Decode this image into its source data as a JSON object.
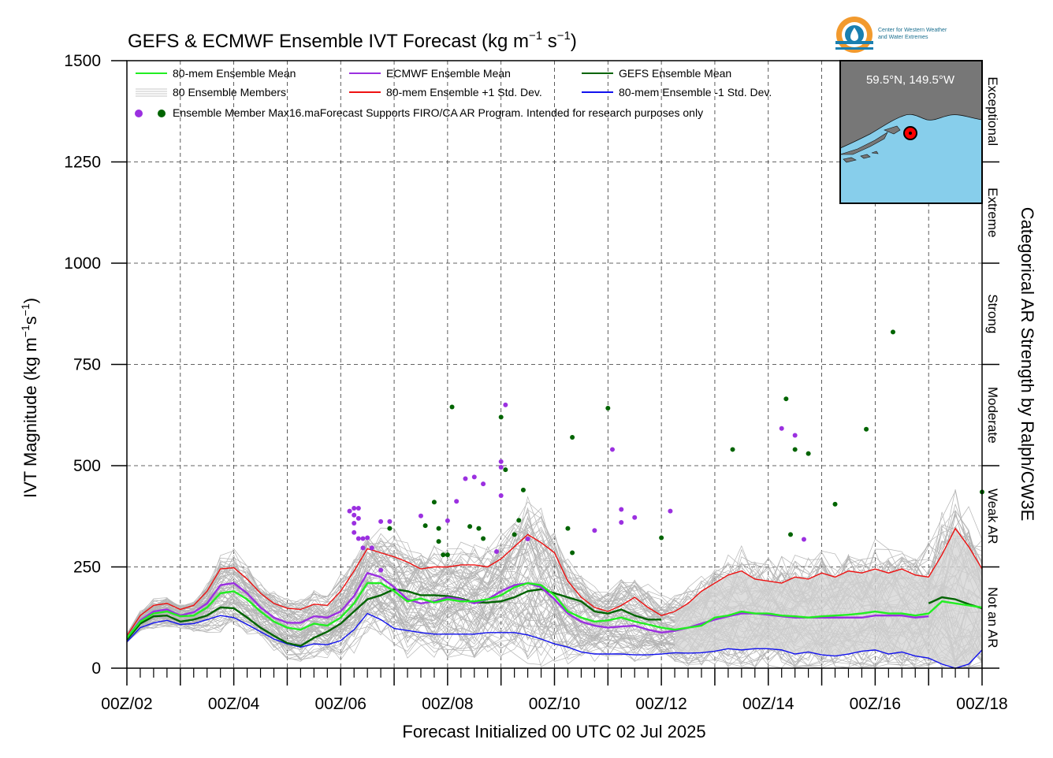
{
  "chart_data": {
    "type": "line",
    "title": "GEFS & ECMWF Ensemble IVT Forecast (kg m⁻¹ s⁻¹)",
    "title_main": "GEFS & ECMWF Ensemble IVT Forecast (kg m",
    "title_sup1": "−1",
    "title_mid": " s",
    "title_sup2": "−1",
    "title_end": ")",
    "ylabel": "IVT Magnitude (kg m⁻¹s⁻¹)",
    "ylabel_main": "IVT Magnitude (kg m",
    "ylabel_sup1": "−1",
    "ylabel_mid": "s",
    "ylabel_sup2": "−1",
    "ylabel_end": ")",
    "xlabel": "Forecast Initialized 00 UTC 02 Jul 2025",
    "right_label": "Categorical AR Strength by Ralph/CW3E",
    "ylim": [
      0,
      1500
    ],
    "xlim": [
      0,
      384
    ],
    "x_unit": "forecast hours",
    "grid": true,
    "yticks": [
      0,
      250,
      500,
      750,
      1000,
      1250,
      1500
    ],
    "ytick_labels": [
      "0",
      "250",
      "500",
      "750",
      "1000",
      "1250",
      "1500"
    ],
    "xtick_labels": [
      "00Z/02",
      "00Z/04",
      "00Z/06",
      "00Z/08",
      "00Z/10",
      "00Z/12",
      "00Z/14",
      "00Z/16",
      "00Z/18"
    ],
    "categories": [
      {
        "label": "Not an AR",
        "range": [
          0,
          250
        ]
      },
      {
        "label": "Weak AR",
        "range": [
          250,
          500
        ]
      },
      {
        "label": "Moderate",
        "range": [
          500,
          750
        ]
      },
      {
        "label": "Strong",
        "range": [
          750,
          1000
        ]
      },
      {
        "label": "Extreme",
        "range": [
          1000,
          1250
        ]
      },
      {
        "label": "Exceptional",
        "range": [
          1250,
          1500
        ]
      }
    ],
    "legend": {
      "placement": "top-left",
      "mean80": "80-mem Ensemble Mean",
      "ecmwf_mean": "ECMWF Ensemble Mean",
      "gefs_mean": "GEFS Ensemble Mean",
      "members": "80 Ensemble Members",
      "plus1": "80-mem Ensemble +1 Std. Dev.",
      "minus1": "80-mem Ensemble -1 Std. Dev.",
      "max": "Ensemble Member Max",
      "note": "16.maForecast Supports FIRO/CA AR Program. Intended for research purposes only"
    },
    "colors": {
      "mean80": "#22ee22",
      "ecmwf_mean": "#9b30e0",
      "gefs_mean": "#006400",
      "plus1": "#ee1111",
      "minus1": "#1111ee",
      "members": "#b4b4b4",
      "shade": "#d3d3d3",
      "map_land": "#777777",
      "map_water": "#87ceeb"
    },
    "inset": {
      "location": "59.5°N, 149.5°W"
    },
    "logo": {
      "line1": "Center for Western Weather",
      "line2": "and Water Extremes"
    },
    "series": [
      {
        "name": "80-mem Ensemble Mean",
        "x": [
          0,
          6,
          12,
          18,
          24,
          30,
          36,
          42,
          48,
          54,
          60,
          66,
          72,
          78,
          84,
          90,
          96,
          102,
          108,
          114,
          120,
          126,
          132,
          138,
          144,
          150,
          156,
          162,
          168,
          174,
          180,
          186,
          192,
          198,
          204,
          210,
          216,
          222,
          228,
          234,
          240,
          246,
          252,
          258,
          264,
          270,
          276,
          282,
          288,
          294,
          300,
          306,
          312,
          318,
          324,
          330,
          336,
          342,
          348,
          354,
          360,
          366,
          372,
          378,
          384
        ],
        "values": [
          75,
          115,
          135,
          140,
          128,
          130,
          150,
          185,
          190,
          170,
          140,
          115,
          100,
          95,
          110,
          105,
          125,
          160,
          210,
          210,
          190,
          165,
          172,
          162,
          170,
          165,
          165,
          170,
          180,
          200,
          210,
          205,
          180,
          140,
          125,
          115,
          118,
          125,
          115,
          108,
          100,
          95,
          100,
          105,
          125,
          130,
          140,
          135,
          135,
          130,
          128,
          125,
          128,
          130,
          132,
          135,
          140,
          135,
          135,
          130,
          135,
          165,
          160,
          155,
          150
        ]
      },
      {
        "name": "ECMWF Ensemble Mean",
        "x": [
          0,
          6,
          12,
          18,
          24,
          30,
          36,
          42,
          48,
          54,
          60,
          66,
          72,
          78,
          84,
          90,
          96,
          102,
          108,
          114,
          120,
          126,
          132,
          138,
          144,
          150,
          156,
          162,
          168,
          174,
          180,
          186,
          192,
          198,
          204,
          210,
          216,
          222,
          228,
          234,
          240,
          246,
          252,
          258,
          264,
          270,
          276,
          282,
          288,
          294,
          300,
          306,
          312,
          318,
          324,
          330,
          336,
          342,
          348,
          354,
          360
        ],
        "values": [
          75,
          118,
          140,
          145,
          130,
          138,
          160,
          205,
          210,
          185,
          150,
          125,
          112,
          112,
          128,
          125,
          140,
          178,
          235,
          225,
          200,
          170,
          160,
          165,
          175,
          170,
          160,
          170,
          190,
          205,
          210,
          200,
          170,
          135,
          115,
          105,
          100,
          103,
          105,
          95,
          88,
          92,
          100,
          110,
          120,
          128,
          135,
          135,
          132,
          128,
          125,
          125,
          125,
          125,
          125,
          125,
          130,
          130,
          130,
          125,
          128
        ]
      },
      {
        "name": "GEFS Ensemble Mean",
        "x": [
          0,
          6,
          12,
          18,
          24,
          30,
          36,
          42,
          48,
          54,
          60,
          66,
          72,
          78,
          84,
          90,
          96,
          102,
          108,
          114,
          120,
          126,
          132,
          138,
          144,
          150,
          156,
          162,
          168,
          174,
          180,
          186,
          192,
          198,
          204,
          210,
          216,
          222,
          228,
          234,
          240,
          360,
          366,
          372,
          378,
          384
        ],
        "values": [
          70,
          110,
          128,
          130,
          115,
          120,
          130,
          150,
          148,
          125,
          100,
          80,
          62,
          55,
          75,
          90,
          110,
          140,
          170,
          180,
          195,
          190,
          180,
          180,
          178,
          172,
          162,
          162,
          165,
          175,
          190,
          195,
          185,
          175,
          165,
          140,
          135,
          145,
          130,
          120,
          120,
          160,
          175,
          170,
          158,
          148
        ]
      },
      {
        "name": "80-mem Ensemble +1 Std. Dev.",
        "x": [
          0,
          6,
          12,
          18,
          24,
          30,
          36,
          42,
          48,
          54,
          60,
          66,
          72,
          78,
          84,
          90,
          96,
          102,
          108,
          114,
          120,
          126,
          132,
          138,
          144,
          150,
          156,
          162,
          168,
          174,
          180,
          186,
          192,
          198,
          204,
          210,
          216,
          222,
          228,
          234,
          240,
          246,
          252,
          258,
          264,
          270,
          276,
          282,
          288,
          294,
          300,
          306,
          312,
          318,
          324,
          330,
          336,
          342,
          348,
          354,
          360,
          366,
          372,
          378,
          384
        ],
        "values": [
          80,
          130,
          155,
          160,
          145,
          155,
          190,
          245,
          248,
          220,
          185,
          160,
          148,
          145,
          158,
          155,
          190,
          240,
          295,
          285,
          275,
          262,
          245,
          250,
          250,
          255,
          255,
          250,
          270,
          300,
          330,
          310,
          285,
          215,
          175,
          150,
          140,
          155,
          175,
          150,
          130,
          140,
          160,
          190,
          210,
          230,
          240,
          220,
          215,
          210,
          225,
          220,
          235,
          225,
          240,
          235,
          245,
          235,
          245,
          230,
          225,
          280,
          345,
          300,
          245
        ]
      },
      {
        "name": "80-mem Ensemble -1 Std. Dev.",
        "x": [
          0,
          6,
          12,
          18,
          24,
          30,
          36,
          42,
          48,
          54,
          60,
          66,
          72,
          78,
          84,
          90,
          96,
          102,
          108,
          114,
          120,
          126,
          132,
          138,
          144,
          150,
          156,
          162,
          168,
          174,
          180,
          186,
          192,
          198,
          204,
          210,
          216,
          222,
          228,
          234,
          240,
          246,
          252,
          258,
          264,
          270,
          276,
          282,
          288,
          294,
          300,
          306,
          312,
          318,
          324,
          330,
          336,
          342,
          348,
          354,
          360,
          366,
          372,
          378,
          384
        ],
        "values": [
          65,
          100,
          112,
          118,
          108,
          110,
          120,
          130,
          125,
          108,
          90,
          72,
          60,
          52,
          60,
          58,
          68,
          95,
          135,
          120,
          98,
          93,
          88,
          84,
          84,
          84,
          84,
          88,
          88,
          88,
          82,
          72,
          60,
          52,
          40,
          35,
          35,
          35,
          33,
          33,
          35,
          38,
          37,
          38,
          42,
          48,
          45,
          48,
          48,
          45,
          35,
          40,
          33,
          30,
          35,
          42,
          45,
          35,
          40,
          30,
          25,
          10,
          0,
          10,
          45
        ]
      }
    ],
    "max_points": {
      "ecmwf": [
        [
          100,
          388
        ],
        [
          102,
          395
        ],
        [
          102,
          378
        ],
        [
          102,
          358
        ],
        [
          104,
          395
        ],
        [
          104,
          370
        ],
        [
          102,
          335
        ],
        [
          104,
          320
        ],
        [
          106,
          320
        ],
        [
          106,
          297
        ],
        [
          108,
          322
        ],
        [
          110,
          297
        ],
        [
          114,
          362
        ],
        [
          118,
          362
        ],
        [
          114,
          242
        ],
        [
          132,
          376
        ],
        [
          144,
          364
        ],
        [
          148,
          412
        ],
        [
          152,
          468
        ],
        [
          156,
          472
        ],
        [
          160,
          455
        ],
        [
          166,
          288
        ],
        [
          168,
          510
        ],
        [
          168,
          496
        ],
        [
          168,
          426
        ],
        [
          170,
          650
        ],
        [
          180,
          319
        ],
        [
          210,
          340
        ],
        [
          218,
          540
        ],
        [
          222,
          360
        ],
        [
          222,
          392
        ],
        [
          228,
          372
        ],
        [
          244,
          388
        ],
        [
          294,
          592
        ],
        [
          300,
          575
        ],
        [
          304,
          318
        ]
      ],
      "gefs": [
        [
          118,
          345
        ],
        [
          134,
          352
        ],
        [
          138,
          410
        ],
        [
          140,
          313
        ],
        [
          140,
          345
        ],
        [
          142,
          280
        ],
        [
          144,
          280
        ],
        [
          146,
          645
        ],
        [
          154,
          350
        ],
        [
          158,
          345
        ],
        [
          160,
          320
        ],
        [
          168,
          620
        ],
        [
          170,
          490
        ],
        [
          174,
          330
        ],
        [
          176,
          365
        ],
        [
          178,
          440
        ],
        [
          198,
          345
        ],
        [
          200,
          570
        ],
        [
          200,
          285
        ],
        [
          216,
          642
        ],
        [
          240,
          322
        ],
        [
          272,
          540
        ],
        [
          298,
          330
        ],
        [
          296,
          665
        ],
        [
          300,
          540
        ],
        [
          306,
          530
        ],
        [
          318,
          405
        ],
        [
          332,
          590
        ],
        [
          344,
          830
        ],
        [
          384,
          435
        ]
      ]
    }
  }
}
